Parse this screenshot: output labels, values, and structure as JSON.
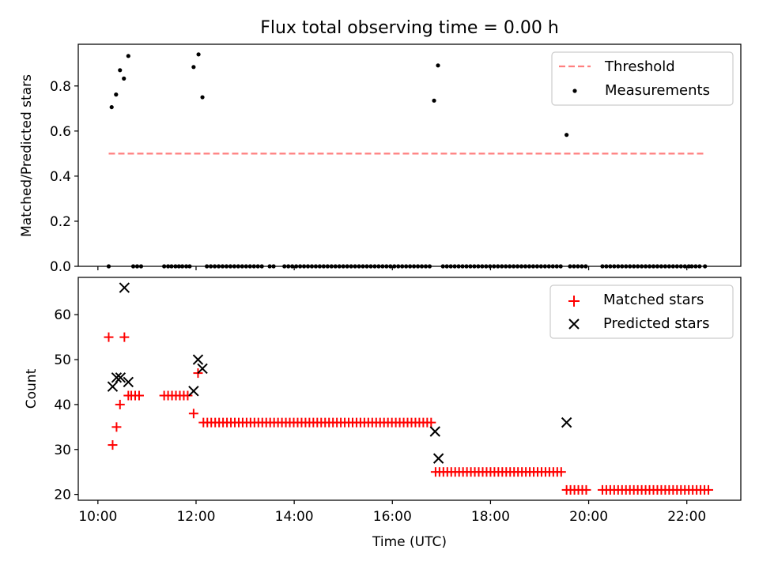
{
  "chart_data": [
    {
      "type": "scatter",
      "title": "Flux total observing time = 0.00 h",
      "xlabel": "",
      "ylabel": "Matched/Predicted stars",
      "xlim": [
        9.6,
        23.1
      ],
      "ylim": [
        0,
        0.985
      ],
      "yticks": [
        0.0,
        0.2,
        0.4,
        0.6,
        0.8
      ],
      "ytick_labels": [
        "0.0",
        "0.2",
        "0.4",
        "0.6",
        "0.8"
      ],
      "xticks": [
        10,
        12,
        14,
        16,
        18,
        20,
        22
      ],
      "grid": false,
      "legend": {
        "placement": "top-right",
        "entries": [
          {
            "label": "Threshold",
            "style": "dashed-line",
            "color": "#ff7f7f"
          },
          {
            "label": "Measurements",
            "style": "dot",
            "color": "#000000"
          }
        ]
      },
      "threshold": {
        "name": "Threshold",
        "y": 0.5,
        "x_range": [
          10.22,
          22.37
        ],
        "color": "#ff7f7f"
      },
      "measurements": {
        "name": "Measurements",
        "color": "#000000",
        "points": [
          [
            10.22,
            0
          ],
          [
            10.28,
            0.706
          ],
          [
            10.37,
            0.762
          ],
          [
            10.45,
            0.87
          ],
          [
            10.53,
            0.833
          ],
          [
            10.62,
            0.933
          ],
          [
            10.72,
            0
          ],
          [
            10.8,
            0
          ],
          [
            10.88,
            0
          ],
          [
            11.35,
            0
          ],
          [
            11.43,
            0
          ],
          [
            11.5,
            0
          ],
          [
            11.58,
            0
          ],
          [
            11.65,
            0
          ],
          [
            11.72,
            0
          ],
          [
            11.8,
            0
          ],
          [
            11.87,
            0
          ],
          [
            11.95,
            0.884
          ],
          [
            12.05,
            0.94
          ],
          [
            12.13,
            0.75
          ],
          [
            12.22,
            0
          ],
          [
            12.3,
            0
          ],
          [
            12.38,
            0
          ],
          [
            12.46,
            0
          ],
          [
            12.54,
            0
          ],
          [
            12.62,
            0
          ],
          [
            12.7,
            0
          ],
          [
            12.78,
            0
          ],
          [
            12.86,
            0
          ],
          [
            12.94,
            0
          ],
          [
            13.02,
            0
          ],
          [
            13.1,
            0
          ],
          [
            13.18,
            0
          ],
          [
            13.26,
            0
          ],
          [
            13.34,
            0
          ],
          [
            13.5,
            0
          ],
          [
            13.58,
            0
          ],
          [
            13.8,
            0
          ],
          [
            13.88,
            0
          ],
          [
            13.96,
            0
          ],
          [
            14.04,
            0
          ],
          [
            14.12,
            0
          ],
          [
            14.2,
            0
          ],
          [
            14.28,
            0
          ],
          [
            14.36,
            0
          ],
          [
            14.44,
            0
          ],
          [
            14.52,
            0
          ],
          [
            14.6,
            0
          ],
          [
            14.68,
            0
          ],
          [
            14.76,
            0
          ],
          [
            14.84,
            0
          ],
          [
            14.92,
            0
          ],
          [
            15.0,
            0
          ],
          [
            15.08,
            0
          ],
          [
            15.16,
            0
          ],
          [
            15.24,
            0
          ],
          [
            15.32,
            0
          ],
          [
            15.4,
            0
          ],
          [
            15.48,
            0
          ],
          [
            15.56,
            0
          ],
          [
            15.64,
            0
          ],
          [
            15.72,
            0
          ],
          [
            15.8,
            0
          ],
          [
            15.88,
            0
          ],
          [
            15.96,
            0
          ],
          [
            16.04,
            0
          ],
          [
            16.12,
            0
          ],
          [
            16.2,
            0
          ],
          [
            16.28,
            0
          ],
          [
            16.36,
            0
          ],
          [
            16.44,
            0
          ],
          [
            16.52,
            0
          ],
          [
            16.6,
            0
          ],
          [
            16.68,
            0
          ],
          [
            16.76,
            0
          ],
          [
            16.85,
            0.735
          ],
          [
            16.93,
            0.891
          ],
          [
            17.03,
            0
          ],
          [
            17.11,
            0
          ],
          [
            17.19,
            0
          ],
          [
            17.27,
            0
          ],
          [
            17.35,
            0
          ],
          [
            17.43,
            0
          ],
          [
            17.51,
            0
          ],
          [
            17.59,
            0
          ],
          [
            17.67,
            0
          ],
          [
            17.75,
            0
          ],
          [
            17.83,
            0
          ],
          [
            17.91,
            0
          ],
          [
            17.99,
            0
          ],
          [
            18.07,
            0
          ],
          [
            18.15,
            0
          ],
          [
            18.23,
            0
          ],
          [
            18.31,
            0
          ],
          [
            18.39,
            0
          ],
          [
            18.47,
            0
          ],
          [
            18.55,
            0
          ],
          [
            18.63,
            0
          ],
          [
            18.71,
            0
          ],
          [
            18.79,
            0
          ],
          [
            18.87,
            0
          ],
          [
            18.95,
            0
          ],
          [
            19.03,
            0
          ],
          [
            19.11,
            0
          ],
          [
            19.19,
            0
          ],
          [
            19.27,
            0
          ],
          [
            19.35,
            0
          ],
          [
            19.43,
            0
          ],
          [
            19.55,
            0.583
          ],
          [
            19.62,
            0
          ],
          [
            19.7,
            0
          ],
          [
            19.78,
            0
          ],
          [
            19.86,
            0
          ],
          [
            19.94,
            0
          ],
          [
            20.28,
            0
          ],
          [
            20.36,
            0
          ],
          [
            20.44,
            0
          ],
          [
            20.52,
            0
          ],
          [
            20.6,
            0
          ],
          [
            20.68,
            0
          ],
          [
            20.76,
            0
          ],
          [
            20.84,
            0
          ],
          [
            20.92,
            0
          ],
          [
            21.0,
            0
          ],
          [
            21.08,
            0
          ],
          [
            21.16,
            0
          ],
          [
            21.24,
            0
          ],
          [
            21.32,
            0
          ],
          [
            21.4,
            0
          ],
          [
            21.48,
            0
          ],
          [
            21.56,
            0
          ],
          [
            21.64,
            0
          ],
          [
            21.72,
            0
          ],
          [
            21.8,
            0
          ],
          [
            21.88,
            0
          ],
          [
            21.96,
            0
          ],
          [
            22.04,
            0
          ],
          [
            22.1,
            0
          ],
          [
            22.18,
            0
          ],
          [
            22.26,
            0
          ],
          [
            22.37,
            0
          ]
        ]
      }
    },
    {
      "type": "scatter",
      "xlabel": "Time (UTC)",
      "ylabel": "Count",
      "xlim": [
        9.6,
        23.1
      ],
      "ylim": [
        18.7,
        68.3
      ],
      "yticks": [
        20,
        30,
        40,
        50,
        60
      ],
      "ytick_labels": [
        "20",
        "30",
        "40",
        "50",
        "60"
      ],
      "xticks": [
        10,
        12,
        14,
        16,
        18,
        20,
        22
      ],
      "xtick_labels": [
        "10:00",
        "12:00",
        "14:00",
        "16:00",
        "18:00",
        "20:00",
        "22:00"
      ],
      "grid": false,
      "legend": {
        "placement": "top-right",
        "entries": [
          {
            "label": "Matched stars",
            "style": "plus",
            "color": "#ff0000"
          },
          {
            "label": "Predicted stars",
            "style": "x",
            "color": "#000000"
          }
        ]
      },
      "series": [
        {
          "name": "Matched stars",
          "marker": "plus",
          "color": "#ff0000",
          "segments": [
            {
              "x_start": 10.68,
              "x_end": 10.9,
              "step": 0.08,
              "y": 42
            },
            {
              "x_start": 11.35,
              "x_end": 11.87,
              "step": 0.08,
              "y": 42
            },
            {
              "x_start": 12.15,
              "x_end": 16.8,
              "step": 0.08,
              "y": 36
            },
            {
              "x_start": 16.88,
              "x_end": 19.45,
              "step": 0.08,
              "y": 25
            },
            {
              "x_start": 19.55,
              "x_end": 19.95,
              "step": 0.08,
              "y": 21
            },
            {
              "x_start": 20.28,
              "x_end": 22.45,
              "step": 0.08,
              "y": 21
            }
          ],
          "points": [
            [
              10.22,
              55
            ],
            [
              10.3,
              31
            ],
            [
              10.38,
              35
            ],
            [
              10.45,
              40
            ],
            [
              10.54,
              55
            ],
            [
              10.62,
              42
            ],
            [
              11.95,
              38
            ],
            [
              12.04,
              47
            ]
          ]
        },
        {
          "name": "Predicted stars",
          "marker": "x",
          "color": "#000000",
          "points": [
            [
              10.3,
              44
            ],
            [
              10.38,
              46
            ],
            [
              10.46,
              46
            ],
            [
              10.54,
              66
            ],
            [
              10.62,
              45
            ],
            [
              11.95,
              43
            ],
            [
              12.04,
              50
            ],
            [
              12.13,
              48
            ],
            [
              16.87,
              34
            ],
            [
              16.94,
              28
            ],
            [
              19.55,
              36
            ]
          ]
        }
      ]
    }
  ]
}
